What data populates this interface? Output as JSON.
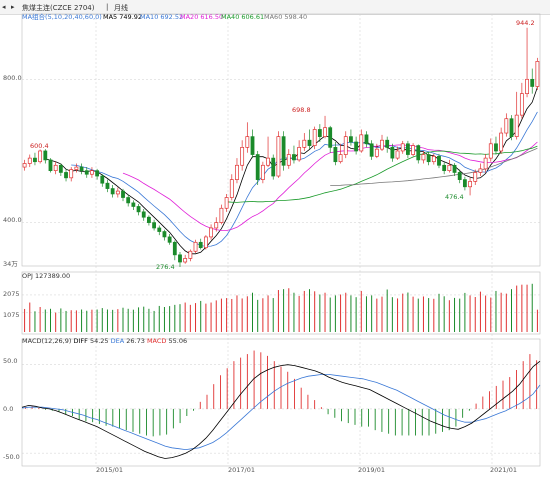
{
  "titlebar": {
    "title": "焦煤主连(CZCE 2704)",
    "period": "月线",
    "arrow_left": "◂",
    "arrow_right": "▸",
    "sep": "|"
  },
  "price_legend": {
    "label": "MA组合(5,10,20,40,60,0)",
    "items": [
      {
        "name": "MA5",
        "value": "749.92",
        "color": "#000000"
      },
      {
        "name": "MA10",
        "value": "692.52",
        "color": "#3a78d6"
      },
      {
        "name": "MA20",
        "value": "616.50",
        "color": "#e020d8"
      },
      {
        "name": "MA40",
        "value": "606.61",
        "color": "#1a9a2a"
      },
      {
        "name": "MA60",
        "value": "598.40",
        "color": "#777777"
      }
    ]
  },
  "vol_legend": {
    "label": "OPJ",
    "value": "127389.00"
  },
  "macd_legend": {
    "label": "MACD(12,26,9)",
    "diff_label": "DIFF",
    "diff_value": "54.25",
    "dea_label": "DEA",
    "dea_value": "26.73",
    "macd_label": "MACD",
    "macd_value": "55.06"
  },
  "colors": {
    "up": "#e03030",
    "down": "#1a8a2a",
    "grid": "#cfcfcf",
    "axis_text": "#555555"
  },
  "chart_data": {
    "type": "candlestick",
    "price_axis": {
      "ylim": [
        290,
        960
      ],
      "ticks": [
        400,
        800
      ],
      "tick_labels": [
        "400.0",
        "800.0"
      ]
    },
    "price_annotations": [
      {
        "label": "600.4",
        "x": "2013/11",
        "value": 600.4
      },
      {
        "label": "276.4",
        "x": "2016/02",
        "value": 276.4
      },
      {
        "label": "698.8",
        "x": "2018/03",
        "value": 698.8
      },
      {
        "label": "476.4",
        "x": "2020/05",
        "value": 476.4
      },
      {
        "label": "944.2",
        "x": "2021/09",
        "value": 944.2
      }
    ],
    "volume_axis": {
      "label_top": "2075",
      "label_bottom": "1075",
      "ylim": [
        0,
        2800
      ]
    },
    "macd_axis": {
      "ylim": [
        -60,
        70
      ],
      "ticks": [
        50,
        0,
        -50
      ],
      "tick_labels": [
        "50.0",
        "0.0",
        "-50.0"
      ]
    },
    "x_tick_labels": [
      "2015/01",
      "2017/01",
      "2019/01",
      "2021/01"
    ],
    "price_left_marker": "34万",
    "candles": [
      {
        "o": 555,
        "c": 565,
        "h": 575,
        "l": 545
      },
      {
        "o": 565,
        "c": 580,
        "h": 590,
        "l": 555
      },
      {
        "o": 580,
        "c": 570,
        "h": 595,
        "l": 560
      },
      {
        "o": 570,
        "c": 600,
        "h": 604,
        "l": 565
      },
      {
        "o": 600,
        "c": 575,
        "h": 605,
        "l": 565
      },
      {
        "o": 575,
        "c": 545,
        "h": 580,
        "l": 540
      },
      {
        "o": 545,
        "c": 560,
        "h": 570,
        "l": 535
      },
      {
        "o": 560,
        "c": 540,
        "h": 565,
        "l": 530
      },
      {
        "o": 540,
        "c": 525,
        "h": 550,
        "l": 515
      },
      {
        "o": 525,
        "c": 548,
        "h": 555,
        "l": 515
      },
      {
        "o": 548,
        "c": 555,
        "h": 565,
        "l": 540
      },
      {
        "o": 555,
        "c": 545,
        "h": 565,
        "l": 535
      },
      {
        "o": 545,
        "c": 535,
        "h": 555,
        "l": 525
      },
      {
        "o": 535,
        "c": 545,
        "h": 555,
        "l": 525
      },
      {
        "o": 545,
        "c": 530,
        "h": 550,
        "l": 520
      },
      {
        "o": 530,
        "c": 510,
        "h": 535,
        "l": 500
      },
      {
        "o": 510,
        "c": 495,
        "h": 520,
        "l": 485
      },
      {
        "o": 495,
        "c": 480,
        "h": 505,
        "l": 470
      },
      {
        "o": 480,
        "c": 488,
        "h": 498,
        "l": 470
      },
      {
        "o": 488,
        "c": 470,
        "h": 494,
        "l": 460
      },
      {
        "o": 470,
        "c": 455,
        "h": 478,
        "l": 445
      },
      {
        "o": 455,
        "c": 445,
        "h": 462,
        "l": 435
      },
      {
        "o": 445,
        "c": 430,
        "h": 452,
        "l": 420
      },
      {
        "o": 430,
        "c": 415,
        "h": 438,
        "l": 405
      },
      {
        "o": 415,
        "c": 400,
        "h": 420,
        "l": 392
      },
      {
        "o": 400,
        "c": 385,
        "h": 408,
        "l": 378
      },
      {
        "o": 385,
        "c": 375,
        "h": 392,
        "l": 365
      },
      {
        "o": 375,
        "c": 360,
        "h": 380,
        "l": 350
      },
      {
        "o": 360,
        "c": 345,
        "h": 368,
        "l": 338
      },
      {
        "o": 345,
        "c": 310,
        "h": 350,
        "l": 295
      },
      {
        "o": 310,
        "c": 290,
        "h": 318,
        "l": 276
      },
      {
        "o": 290,
        "c": 300,
        "h": 310,
        "l": 285
      },
      {
        "o": 300,
        "c": 320,
        "h": 325,
        "l": 292
      },
      {
        "o": 320,
        "c": 345,
        "h": 352,
        "l": 315
      },
      {
        "o": 345,
        "c": 330,
        "h": 355,
        "l": 325
      },
      {
        "o": 330,
        "c": 360,
        "h": 365,
        "l": 325
      },
      {
        "o": 360,
        "c": 385,
        "h": 395,
        "l": 352
      },
      {
        "o": 385,
        "c": 400,
        "h": 415,
        "l": 375
      },
      {
        "o": 400,
        "c": 440,
        "h": 450,
        "l": 395
      },
      {
        "o": 440,
        "c": 470,
        "h": 480,
        "l": 430
      },
      {
        "o": 470,
        "c": 520,
        "h": 535,
        "l": 462
      },
      {
        "o": 520,
        "c": 560,
        "h": 580,
        "l": 510
      },
      {
        "o": 560,
        "c": 610,
        "h": 630,
        "l": 545
      },
      {
        "o": 610,
        "c": 640,
        "h": 680,
        "l": 595
      },
      {
        "o": 640,
        "c": 590,
        "h": 660,
        "l": 580
      },
      {
        "o": 590,
        "c": 520,
        "h": 600,
        "l": 505
      },
      {
        "o": 520,
        "c": 560,
        "h": 570,
        "l": 510
      },
      {
        "o": 560,
        "c": 580,
        "h": 640,
        "l": 555
      },
      {
        "o": 580,
        "c": 530,
        "h": 590,
        "l": 520
      },
      {
        "o": 530,
        "c": 640,
        "h": 655,
        "l": 525
      },
      {
        "o": 640,
        "c": 560,
        "h": 655,
        "l": 545
      },
      {
        "o": 560,
        "c": 590,
        "h": 605,
        "l": 550
      },
      {
        "o": 590,
        "c": 575,
        "h": 615,
        "l": 565
      },
      {
        "o": 575,
        "c": 610,
        "h": 630,
        "l": 570
      },
      {
        "o": 610,
        "c": 630,
        "h": 650,
        "l": 600
      },
      {
        "o": 630,
        "c": 615,
        "h": 660,
        "l": 605
      },
      {
        "o": 615,
        "c": 660,
        "h": 668,
        "l": 605
      },
      {
        "o": 660,
        "c": 640,
        "h": 675,
        "l": 625
      },
      {
        "o": 640,
        "c": 665,
        "h": 698,
        "l": 635
      },
      {
        "o": 665,
        "c": 610,
        "h": 670,
        "l": 595
      },
      {
        "o": 610,
        "c": 570,
        "h": 625,
        "l": 560
      },
      {
        "o": 570,
        "c": 590,
        "h": 620,
        "l": 565
      },
      {
        "o": 590,
        "c": 640,
        "h": 655,
        "l": 580
      },
      {
        "o": 640,
        "c": 625,
        "h": 660,
        "l": 615
      },
      {
        "o": 625,
        "c": 600,
        "h": 640,
        "l": 590
      },
      {
        "o": 600,
        "c": 645,
        "h": 660,
        "l": 595
      },
      {
        "o": 645,
        "c": 620,
        "h": 655,
        "l": 610
      },
      {
        "o": 620,
        "c": 585,
        "h": 630,
        "l": 575
      },
      {
        "o": 585,
        "c": 605,
        "h": 620,
        "l": 580
      },
      {
        "o": 605,
        "c": 630,
        "h": 645,
        "l": 600
      },
      {
        "o": 630,
        "c": 610,
        "h": 640,
        "l": 595
      },
      {
        "o": 610,
        "c": 580,
        "h": 620,
        "l": 570
      },
      {
        "o": 580,
        "c": 600,
        "h": 612,
        "l": 575
      },
      {
        "o": 600,
        "c": 620,
        "h": 628,
        "l": 592
      },
      {
        "o": 620,
        "c": 590,
        "h": 628,
        "l": 580
      },
      {
        "o": 590,
        "c": 615,
        "h": 622,
        "l": 585
      },
      {
        "o": 615,
        "c": 575,
        "h": 618,
        "l": 565
      },
      {
        "o": 575,
        "c": 590,
        "h": 600,
        "l": 565
      },
      {
        "o": 590,
        "c": 570,
        "h": 596,
        "l": 560
      },
      {
        "o": 570,
        "c": 585,
        "h": 592,
        "l": 562
      },
      {
        "o": 585,
        "c": 560,
        "h": 592,
        "l": 552
      },
      {
        "o": 560,
        "c": 545,
        "h": 568,
        "l": 535
      },
      {
        "o": 545,
        "c": 560,
        "h": 575,
        "l": 540
      },
      {
        "o": 560,
        "c": 540,
        "h": 566,
        "l": 530
      },
      {
        "o": 540,
        "c": 520,
        "h": 548,
        "l": 510
      },
      {
        "o": 520,
        "c": 500,
        "h": 528,
        "l": 490
      },
      {
        "o": 500,
        "c": 515,
        "h": 525,
        "l": 476
      },
      {
        "o": 515,
        "c": 540,
        "h": 548,
        "l": 505
      },
      {
        "o": 540,
        "c": 550,
        "h": 565,
        "l": 530
      },
      {
        "o": 550,
        "c": 580,
        "h": 592,
        "l": 540
      },
      {
        "o": 580,
        "c": 620,
        "h": 635,
        "l": 570
      },
      {
        "o": 620,
        "c": 600,
        "h": 640,
        "l": 590
      },
      {
        "o": 600,
        "c": 650,
        "h": 665,
        "l": 592
      },
      {
        "o": 650,
        "c": 690,
        "h": 705,
        "l": 640
      },
      {
        "o": 690,
        "c": 640,
        "h": 700,
        "l": 630
      },
      {
        "o": 640,
        "c": 700,
        "h": 765,
        "l": 632
      },
      {
        "o": 700,
        "c": 760,
        "h": 790,
        "l": 690
      },
      {
        "o": 760,
        "c": 800,
        "h": 944,
        "l": 750
      },
      {
        "o": 800,
        "c": 780,
        "h": 830,
        "l": 760
      },
      {
        "o": 780,
        "c": 850,
        "h": 860,
        "l": 770
      }
    ],
    "volumes": [
      1290,
      1650,
      1160,
      1400,
      1260,
      1300,
      1090,
      1320,
      1180,
      1220,
      1210,
      1260,
      1190,
      1250,
      1260,
      1340,
      1260,
      1240,
      1280,
      1360,
      1300,
      1250,
      1380,
      1420,
      1300,
      1180,
      1460,
      1400,
      1450,
      1520,
      1560,
      1650,
      1520,
      1620,
      1740,
      1590,
      1650,
      1770,
      1870,
      1900,
      1850,
      2050,
      1880,
      2000,
      2200,
      1800,
      1890,
      2050,
      1900,
      2350,
      2400,
      2450,
      2200,
      2020,
      2300,
      2400,
      2280,
      2100,
      2200,
      1930,
      2050,
      2100,
      2200,
      2050,
      1950,
      2300,
      2000,
      2050,
      1870,
      1980,
      2380,
      1950,
      1880,
      2150,
      2210,
      1980,
      1870,
      1990,
      1900,
      1860,
      2140,
      2000,
      1780,
      1910,
      1870,
      2190,
      2050,
      1960,
      2260,
      2040,
      1930,
      2300,
      2200,
      2150,
      2400,
      2600,
      2650,
      2650,
      2700,
      1250
    ],
    "macd_diff": [
      2,
      4,
      3,
      1,
      0,
      -2,
      -5,
      -8,
      -11,
      -14,
      -17,
      -20,
      -24,
      -28,
      -32,
      -36,
      -40,
      -44,
      -48,
      -51,
      -54,
      -56,
      -55,
      -53,
      -50,
      -46,
      -40,
      -33,
      -24,
      -14,
      -4,
      6,
      16,
      25,
      34,
      40,
      44,
      47,
      49,
      50,
      49,
      47,
      45,
      43,
      40,
      36,
      33,
      30,
      28,
      26,
      24,
      22,
      18,
      14,
      10,
      6,
      2,
      -2,
      -6,
      -10,
      -14,
      -17,
      -20,
      -22,
      -23,
      -20,
      -16,
      -10,
      -4,
      2,
      8,
      14,
      20,
      28,
      38,
      48,
      54
    ],
    "macd_dea": [
      1,
      2,
      2,
      2,
      1,
      0,
      -1,
      -3,
      -5,
      -7,
      -10,
      -12,
      -15,
      -18,
      -21,
      -24,
      -27,
      -30,
      -33,
      -36,
      -39,
      -42,
      -44,
      -45,
      -46,
      -45,
      -44,
      -41,
      -38,
      -33,
      -27,
      -20,
      -13,
      -6,
      1,
      8,
      14,
      20,
      25,
      29,
      32,
      35,
      37,
      38,
      39,
      39,
      38,
      37,
      36,
      35,
      34,
      32,
      30,
      27,
      24,
      21,
      17,
      13,
      9,
      5,
      1,
      -3,
      -7,
      -10,
      -13,
      -15,
      -15,
      -13,
      -11,
      -8,
      -5,
      -2,
      2,
      6,
      11,
      17,
      27
    ],
    "macd_hist": [
      2,
      3,
      1,
      -1,
      -2,
      -3,
      -6,
      -8,
      -12,
      -14,
      -15,
      -17,
      -19,
      -20,
      -22,
      -24,
      -26,
      -28,
      -30,
      -31,
      -30,
      -29,
      -22,
      -16,
      -8,
      -2,
      8,
      16,
      28,
      38,
      46,
      54,
      58,
      62,
      66,
      64,
      60,
      54,
      48,
      42,
      34,
      24,
      16,
      10,
      2,
      -6,
      -10,
      -14,
      -16,
      -18,
      -20,
      -20,
      -24,
      -26,
      -28,
      -30,
      -30,
      -30,
      -30,
      -30,
      -30,
      -28,
      -26,
      -24,
      -20,
      -10,
      -2,
      6,
      14,
      20,
      26,
      32,
      36,
      44,
      54,
      62,
      55
    ]
  }
}
